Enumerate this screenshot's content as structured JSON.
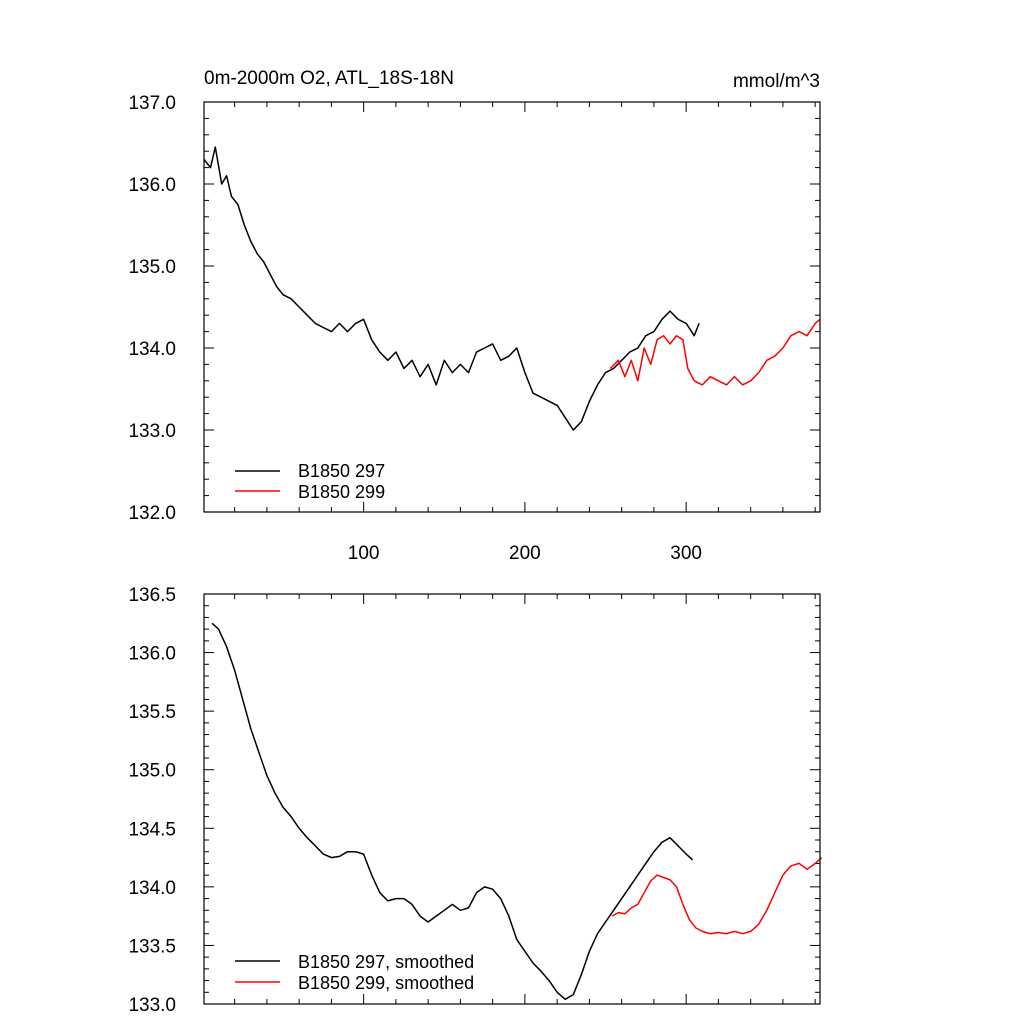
{
  "chart_data": [
    {
      "type": "line",
      "title_left": "0m-2000m O2, ATL_18S-18N",
      "title_right": "mmol/m^3",
      "xlim": [
        1,
        383
      ],
      "ylim": [
        132.0,
        137.0
      ],
      "x_tick_labels": [
        "100",
        "200",
        "300"
      ],
      "x_major_ticks": [
        100,
        200,
        300
      ],
      "x_minor_step": 20,
      "y_tick_labels": [
        "132.0",
        "133.0",
        "134.0",
        "135.0",
        "136.0",
        "137.0"
      ],
      "y_major_ticks": [
        132,
        133,
        134,
        135,
        136,
        137
      ],
      "y_minor_step": 0.2,
      "legend_position": "bottom-left",
      "series": [
        {
          "name": "B1850 297",
          "color": "#000000",
          "x": [
            1,
            5,
            8,
            12,
            15,
            18,
            22,
            26,
            30,
            34,
            38,
            42,
            46,
            50,
            55,
            60,
            65,
            70,
            75,
            80,
            85,
            90,
            95,
            100,
            105,
            110,
            115,
            120,
            125,
            130,
            135,
            140,
            145,
            150,
            155,
            160,
            165,
            170,
            175,
            180,
            185,
            190,
            195,
            200,
            205,
            210,
            215,
            220,
            225,
            230,
            235,
            240,
            245,
            250,
            255,
            260,
            265,
            270,
            275,
            280,
            285,
            290,
            295,
            300,
            305,
            308
          ],
          "values": [
            136.3,
            136.2,
            136.45,
            136.0,
            136.1,
            135.85,
            135.75,
            135.5,
            135.3,
            135.15,
            135.05,
            134.9,
            134.75,
            134.65,
            134.6,
            134.5,
            134.4,
            134.3,
            134.25,
            134.2,
            134.3,
            134.2,
            134.3,
            134.35,
            134.1,
            133.95,
            133.85,
            133.95,
            133.75,
            133.85,
            133.65,
            133.8,
            133.55,
            133.85,
            133.7,
            133.8,
            133.7,
            133.95,
            134.0,
            134.05,
            133.85,
            133.9,
            134.0,
            133.7,
            133.45,
            133.4,
            133.35,
            133.3,
            133.15,
            133.0,
            133.1,
            133.35,
            133.55,
            133.7,
            133.75,
            133.85,
            133.95,
            134.0,
            134.15,
            134.2,
            134.35,
            134.45,
            134.35,
            134.3,
            134.15,
            134.3
          ]
        },
        {
          "name": "B1850 299",
          "color": "#ff0000",
          "x": [
            253,
            258,
            262,
            266,
            270,
            274,
            278,
            282,
            286,
            290,
            294,
            298,
            301,
            305,
            310,
            315,
            320,
            325,
            330,
            335,
            340,
            345,
            350,
            355,
            360,
            365,
            370,
            375,
            380,
            383
          ],
          "values": [
            133.75,
            133.85,
            133.65,
            133.85,
            133.6,
            134.0,
            133.8,
            134.1,
            134.15,
            134.05,
            134.15,
            134.1,
            133.75,
            133.6,
            133.55,
            133.65,
            133.6,
            133.55,
            133.65,
            133.55,
            133.6,
            133.7,
            133.85,
            133.9,
            134.0,
            134.15,
            134.2,
            134.15,
            134.3,
            134.35
          ]
        }
      ]
    },
    {
      "type": "line",
      "xlim": [
        1,
        383
      ],
      "ylim": [
        133.0,
        136.5
      ],
      "x_major_ticks": [
        100,
        200,
        300
      ],
      "x_minor_step": 20,
      "y_tick_labels": [
        "133.0",
        "133.5",
        "134.0",
        "134.5",
        "135.0",
        "135.5",
        "136.0",
        "136.5"
      ],
      "y_major_ticks": [
        133.0,
        133.5,
        134.0,
        134.5,
        135.0,
        135.5,
        136.0,
        136.5
      ],
      "y_minor_step": 0.1,
      "legend_position": "bottom-left",
      "series": [
        {
          "name": "B1850 297, smoothed",
          "color": "#000000",
          "x": [
            6,
            10,
            15,
            20,
            25,
            30,
            35,
            40,
            45,
            50,
            55,
            60,
            65,
            70,
            75,
            80,
            85,
            90,
            95,
            100,
            105,
            110,
            115,
            120,
            125,
            130,
            135,
            140,
            145,
            150,
            155,
            160,
            165,
            170,
            175,
            180,
            185,
            190,
            195,
            200,
            205,
            210,
            215,
            220,
            225,
            230,
            235,
            240,
            245,
            250,
            255,
            260,
            265,
            270,
            275,
            280,
            285,
            290,
            295,
            300,
            304
          ],
          "values": [
            136.25,
            136.2,
            136.05,
            135.85,
            135.6,
            135.35,
            135.15,
            134.95,
            134.8,
            134.68,
            134.6,
            134.5,
            134.42,
            134.35,
            134.28,
            134.25,
            134.26,
            134.3,
            134.3,
            134.28,
            134.1,
            133.95,
            133.88,
            133.9,
            133.9,
            133.85,
            133.75,
            133.7,
            133.75,
            133.8,
            133.85,
            133.8,
            133.82,
            133.95,
            134.0,
            133.98,
            133.9,
            133.75,
            133.55,
            133.45,
            133.35,
            133.28,
            133.2,
            133.1,
            133.04,
            133.08,
            133.25,
            133.45,
            133.6,
            133.7,
            133.8,
            133.9,
            134.0,
            134.1,
            134.2,
            134.3,
            134.38,
            134.42,
            134.35,
            134.28,
            134.23
          ]
        },
        {
          "name": "B1850 299, smoothed",
          "color": "#ff0000",
          "x": [
            254,
            258,
            262,
            266,
            270,
            274,
            278,
            282,
            286,
            290,
            294,
            298,
            302,
            306,
            310,
            315,
            320,
            325,
            330,
            335,
            340,
            345,
            350,
            355,
            360,
            365,
            370,
            375,
            380,
            384
          ],
          "values": [
            133.75,
            133.78,
            133.77,
            133.82,
            133.85,
            133.95,
            134.05,
            134.1,
            134.08,
            134.06,
            134.0,
            133.85,
            133.72,
            133.65,
            133.62,
            133.6,
            133.61,
            133.6,
            133.62,
            133.6,
            133.62,
            133.68,
            133.8,
            133.95,
            134.1,
            134.18,
            134.2,
            134.15,
            134.2,
            134.25
          ]
        }
      ]
    }
  ]
}
